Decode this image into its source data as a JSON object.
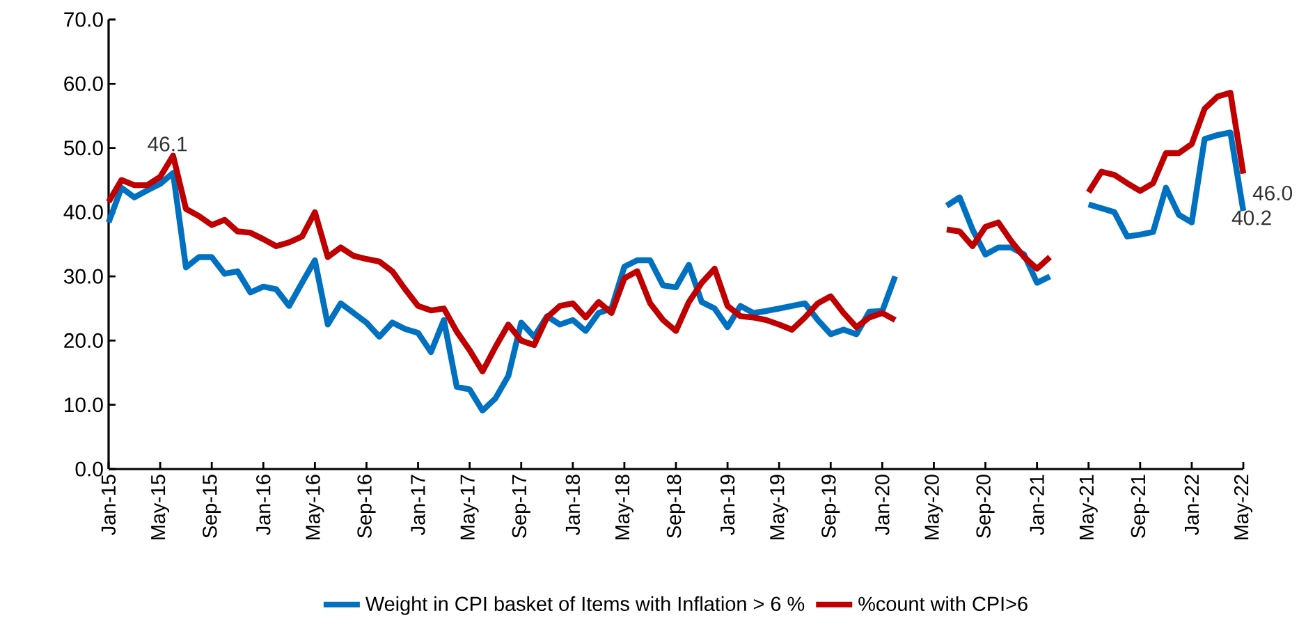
{
  "chart_data": {
    "type": "line",
    "categories": [
      "Jan-15",
      null,
      null,
      null,
      "May-15",
      null,
      null,
      null,
      "Sep-15",
      null,
      null,
      null,
      "Jan-16",
      null,
      null,
      null,
      "May-16",
      null,
      null,
      null,
      "Sep-16",
      null,
      null,
      null,
      "Jan-17",
      null,
      null,
      null,
      "May-17",
      null,
      null,
      null,
      "Sep-17",
      null,
      null,
      null,
      "Jan-18",
      null,
      null,
      null,
      "May-18",
      null,
      null,
      null,
      "Sep-18",
      null,
      null,
      null,
      "Jan-19",
      null,
      null,
      null,
      "May-19",
      null,
      null,
      null,
      "Sep-19",
      null,
      null,
      null,
      "Jan-20",
      null,
      null,
      null,
      "May-20",
      null,
      null,
      null,
      "Sep-20",
      null,
      null,
      null,
      "Jan-21",
      null,
      null,
      null,
      "May-21",
      null,
      null,
      null,
      "Sep-21",
      null,
      null,
      null,
      "Jan-22",
      null,
      null,
      null,
      "May-22"
    ],
    "series": [
      {
        "name": "Weight in CPI basket of Items with Inflation > 6 %",
        "color": "#0070c0",
        "values": [
          38.4,
          43.8,
          42.3,
          43.4,
          44.4,
          46.1,
          31.4,
          33,
          33,
          30.4,
          30.8,
          27.5,
          28.4,
          28,
          25.4,
          29,
          32.5,
          22.5,
          25.8,
          24.3,
          22.8,
          20.6,
          22.8,
          21.8,
          21.2,
          18.2,
          23.2,
          12.8,
          12.4,
          9.1,
          11,
          14.5,
          22.8,
          20.6,
          23.8,
          22.5,
          23.2,
          21.5,
          24.3,
          25,
          31.5,
          32.5,
          32.5,
          28.6,
          28.3,
          31.8,
          26,
          25,
          22.1,
          25.4,
          24.3,
          24.6,
          25,
          25.4,
          25.8,
          23.2,
          21,
          21.7,
          21,
          24.5,
          24.6,
          30,
          null,
          null,
          null,
          41,
          42.3,
          37.3,
          33.4,
          34.5,
          34.5,
          33.4,
          29,
          30,
          null,
          null,
          41.2,
          40.6,
          40,
          36.2,
          36.5,
          36.9,
          43.8,
          39.6,
          38.4,
          51.4,
          52,
          52.4,
          40.2
        ],
        "value_labels": [
          null,
          null,
          null,
          null,
          null,
          "46.1",
          null,
          null,
          null,
          null,
          null,
          null,
          null,
          null,
          null,
          null,
          null,
          null,
          null,
          null,
          null,
          null,
          null,
          null,
          null,
          null,
          null,
          null,
          null,
          null,
          null,
          null,
          null,
          null,
          null,
          null,
          null,
          null,
          null,
          null,
          null,
          null,
          null,
          null,
          null,
          null,
          null,
          null,
          null,
          null,
          null,
          null,
          null,
          null,
          null,
          null,
          null,
          null,
          null,
          null,
          null,
          null,
          null,
          null,
          null,
          null,
          null,
          null,
          null,
          null,
          null,
          null,
          null,
          null,
          null,
          null,
          null,
          null,
          null,
          null,
          null,
          null,
          null,
          null,
          null,
          null,
          null,
          null,
          "40.2"
        ]
      },
      {
        "name": "%count with CPI>6",
        "color": "#c00000",
        "values": [
          41.6,
          45,
          44.2,
          44.2,
          45.5,
          48.8,
          40.5,
          39.4,
          38,
          38.8,
          37,
          36.8,
          35.8,
          34.7,
          35.3,
          36.2,
          40,
          33,
          34.5,
          33.2,
          32.7,
          32.3,
          30.8,
          28,
          25.4,
          24.7,
          25,
          21.4,
          18.5,
          15.2,
          19,
          22.5,
          20,
          19.3,
          23.6,
          25.4,
          25.8,
          23.6,
          26,
          24.3,
          29.7,
          30.8,
          25.8,
          23.2,
          21.5,
          26,
          29,
          31.2,
          25.4,
          23.8,
          23.6,
          23.2,
          22.5,
          21.7,
          23.6,
          25.8,
          26.9,
          24.3,
          22.1,
          23.6,
          24.3,
          23.2,
          null,
          null,
          null,
          37.3,
          37,
          34.7,
          37.7,
          38.4,
          35.5,
          33,
          31.2,
          33,
          null,
          null,
          43.1,
          46.3,
          45.8,
          44.5,
          43.3,
          44.5,
          49.2,
          49.2,
          50.6,
          56.1,
          58,
          58.6,
          46
        ],
        "value_labels": [
          null,
          null,
          null,
          null,
          null,
          null,
          null,
          null,
          null,
          null,
          null,
          null,
          null,
          null,
          null,
          null,
          null,
          null,
          null,
          null,
          null,
          null,
          null,
          null,
          null,
          null,
          null,
          null,
          null,
          null,
          null,
          null,
          null,
          null,
          null,
          null,
          null,
          null,
          null,
          null,
          null,
          null,
          null,
          null,
          null,
          null,
          null,
          null,
          null,
          null,
          null,
          null,
          null,
          null,
          null,
          null,
          null,
          null,
          null,
          null,
          null,
          null,
          null,
          null,
          null,
          null,
          null,
          null,
          null,
          null,
          null,
          null,
          null,
          null,
          null,
          null,
          null,
          null,
          null,
          null,
          null,
          null,
          null,
          null,
          null,
          null,
          null,
          null,
          "46.0"
        ]
      }
    ],
    "ylim": [
      0,
      70
    ],
    "yticks": [
      {
        "value": 0,
        "label": "0.0"
      },
      {
        "value": 10,
        "label": "10.0"
      },
      {
        "value": 20,
        "label": "20.0"
      },
      {
        "value": 30,
        "label": "30.0"
      },
      {
        "value": 40,
        "label": "40.0"
      },
      {
        "value": 50,
        "label": "50.0"
      },
      {
        "value": 60,
        "label": "60.0"
      },
      {
        "value": 70,
        "label": "70.0"
      }
    ],
    "grid": false,
    "legend": "bottom",
    "marker": "none",
    "line_style": "solid"
  }
}
